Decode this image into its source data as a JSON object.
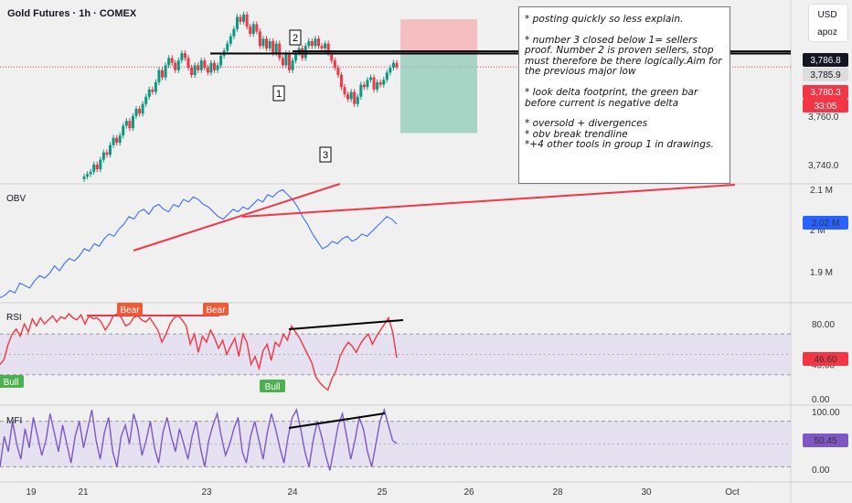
{
  "header": {
    "title": "Gold Futures · 1h · COMEX",
    "currency": "USD",
    "user": "apoz"
  },
  "note": {
    "lines": [
      "* posting quickly so less explain.",
      "* number 3 closed below 1= sellers proof. Number 2 is proven sellers, stop must therefore be there logically.Aim for the previous major low",
      "* look delta footprint, the green bar before current is negative delta",
      "* oversold + divergences",
      "* obv break trendline",
      "*+4 other tools in group 1 in drawings."
    ]
  },
  "markers": {
    "m1": "1",
    "m2": "2",
    "m3": "3"
  },
  "chart_data": [
    {
      "type": "candlestick",
      "title": "Gold Futures · 1h · COMEX",
      "ylim": [
        3732,
        3808
      ],
      "y_ticks": [
        "3,760.0",
        "3,740.0"
      ],
      "price_labels": [
        {
          "value": "3,786.8",
          "color": "#131722"
        },
        {
          "value": "3,785.9",
          "color": "#dddddd"
        },
        {
          "value": "3,780.3",
          "color": "#f23645"
        },
        {
          "value": "33:05",
          "color": "#f23645"
        }
      ],
      "close": [
        3735,
        3736,
        3737,
        3740,
        3738,
        3742,
        3745,
        3744,
        3748,
        3751,
        3749,
        3752,
        3756,
        3758,
        3755,
        3760,
        3763,
        3761,
        3765,
        3768,
        3771,
        3770,
        3774,
        3779,
        3776,
        3781,
        3784,
        3782,
        3779,
        3783,
        3786,
        3784,
        3780,
        3777,
        3781,
        3779,
        3783,
        3780,
        3778,
        3782,
        3779,
        3781,
        3785,
        3787,
        3790,
        3793,
        3796,
        3801,
        3799,
        3802,
        3797,
        3794,
        3798,
        3795,
        3789,
        3792,
        3788,
        3791,
        3786,
        3790,
        3784,
        3781,
        3786,
        3779,
        3783,
        3786,
        3788,
        3784,
        3789,
        3791,
        3789,
        3792,
        3789,
        3788,
        3790,
        3786,
        3783,
        3780,
        3777,
        3772,
        3769,
        3767,
        3770,
        3765,
        3768,
        3773,
        3772,
        3775,
        3776,
        3771,
        3774,
        3773,
        3775,
        3778,
        3780,
        3782,
        3780.3
      ],
      "levels": [
        3786.8,
        3785.9,
        3780.3
      ],
      "position": {
        "type": "short",
        "stop": 3800,
        "entry": 3785.9,
        "target": 3753
      }
    },
    {
      "type": "line",
      "title": "OBV",
      "ylim": [
        1.86,
        2.1
      ],
      "y_ticks": [
        "2.1 M",
        "2 M",
        "1.9 M"
      ],
      "last_value": "2.02 M",
      "color": "#2962ff",
      "values": [
        1.87,
        1.875,
        1.885,
        1.88,
        1.9,
        1.895,
        1.89,
        1.905,
        1.915,
        1.91,
        1.92,
        1.935,
        1.925,
        1.94,
        1.95,
        1.945,
        1.955,
        1.97,
        1.965,
        1.98,
        1.975,
        1.99,
        2.0,
        1.995,
        2.01,
        2.02,
        2.035,
        2.03,
        2.045,
        2.05,
        2.04,
        2.055,
        2.06,
        2.05,
        2.045,
        2.06,
        2.055,
        2.07,
        2.065,
        2.075,
        2.07,
        2.06,
        2.055,
        2.045,
        2.035,
        2.03,
        2.04,
        2.05,
        2.045,
        2.055,
        2.05,
        2.06,
        2.07,
        2.065,
        2.08,
        2.075,
        2.085,
        2.09,
        2.08,
        2.07,
        2.055,
        2.035,
        2.02,
        2.0,
        1.985,
        1.97,
        1.975,
        1.985,
        1.98,
        1.99,
        1.995,
        1.985,
        1.99,
        2.0,
        1.995,
        2.005,
        2.015,
        2.025,
        2.035,
        2.03,
        2.02
      ]
    },
    {
      "type": "line",
      "title": "RSI",
      "ylim": [
        0,
        100
      ],
      "y_ticks": [
        "80.00",
        "40.00",
        "0.00"
      ],
      "last_value": "46.60",
      "color": "#f23645",
      "labels": {
        "bear1": "Bear",
        "bear2": "Bear",
        "bull1": "Bull",
        "bull2": "Bull"
      },
      "values": [
        40,
        45,
        60,
        70,
        75,
        68,
        80,
        72,
        85,
        78,
        86,
        80,
        84,
        88,
        82,
        87,
        85,
        90,
        86,
        84,
        89,
        80,
        88,
        85,
        86,
        82,
        74,
        80,
        88,
        90,
        86,
        78,
        80,
        86,
        88,
        84,
        82,
        86,
        80,
        74,
        62,
        70,
        80,
        86,
        88,
        84,
        78,
        60,
        70,
        52,
        68,
        62,
        74,
        66,
        56,
        64,
        50,
        58,
        66,
        48,
        70,
        62,
        40,
        48,
        36,
        54,
        60,
        44,
        62,
        58,
        70,
        64,
        78,
        72,
        66,
        58,
        50,
        42,
        28,
        22,
        18,
        15,
        26,
        34,
        48,
        56,
        62,
        58,
        52,
        60,
        66,
        70,
        60,
        68,
        74,
        80,
        86,
        72,
        46.6
      ]
    },
    {
      "type": "line",
      "title": "MFI",
      "ylim": [
        0,
        100
      ],
      "y_ticks": [
        "100.00",
        "0.00"
      ],
      "last_value": "50.45",
      "color": "#7e57c2",
      "values": [
        20,
        60,
        40,
        80,
        50,
        30,
        70,
        45,
        85,
        60,
        35,
        55,
        90,
        65,
        40,
        75,
        50,
        25,
        60,
        80,
        45,
        70,
        95,
        55,
        30,
        65,
        85,
        40,
        20,
        60,
        75,
        50,
        90,
        70,
        35,
        55,
        80,
        45,
        25,
        65,
        85,
        60,
        40,
        70,
        50,
        30,
        60,
        80,
        45,
        20,
        55,
        75,
        90,
        60,
        35,
        50,
        70,
        85,
        40,
        25,
        60,
        80,
        55,
        30,
        65,
        90,
        70,
        45,
        25,
        60,
        85,
        95,
        70,
        40,
        20,
        55,
        80,
        60,
        35,
        15,
        45,
        75,
        90,
        60,
        30,
        55,
        85,
        70,
        40,
        20,
        50,
        80,
        95,
        75,
        55,
        50.45
      ]
    }
  ],
  "x_axis": {
    "labels": [
      "19",
      "21",
      "23",
      "24",
      "25",
      "26",
      "28",
      "30",
      "Oct"
    ]
  },
  "pane_labels": {
    "obv": "OBV",
    "rsi": "RSI",
    "mfi": "MFI"
  }
}
